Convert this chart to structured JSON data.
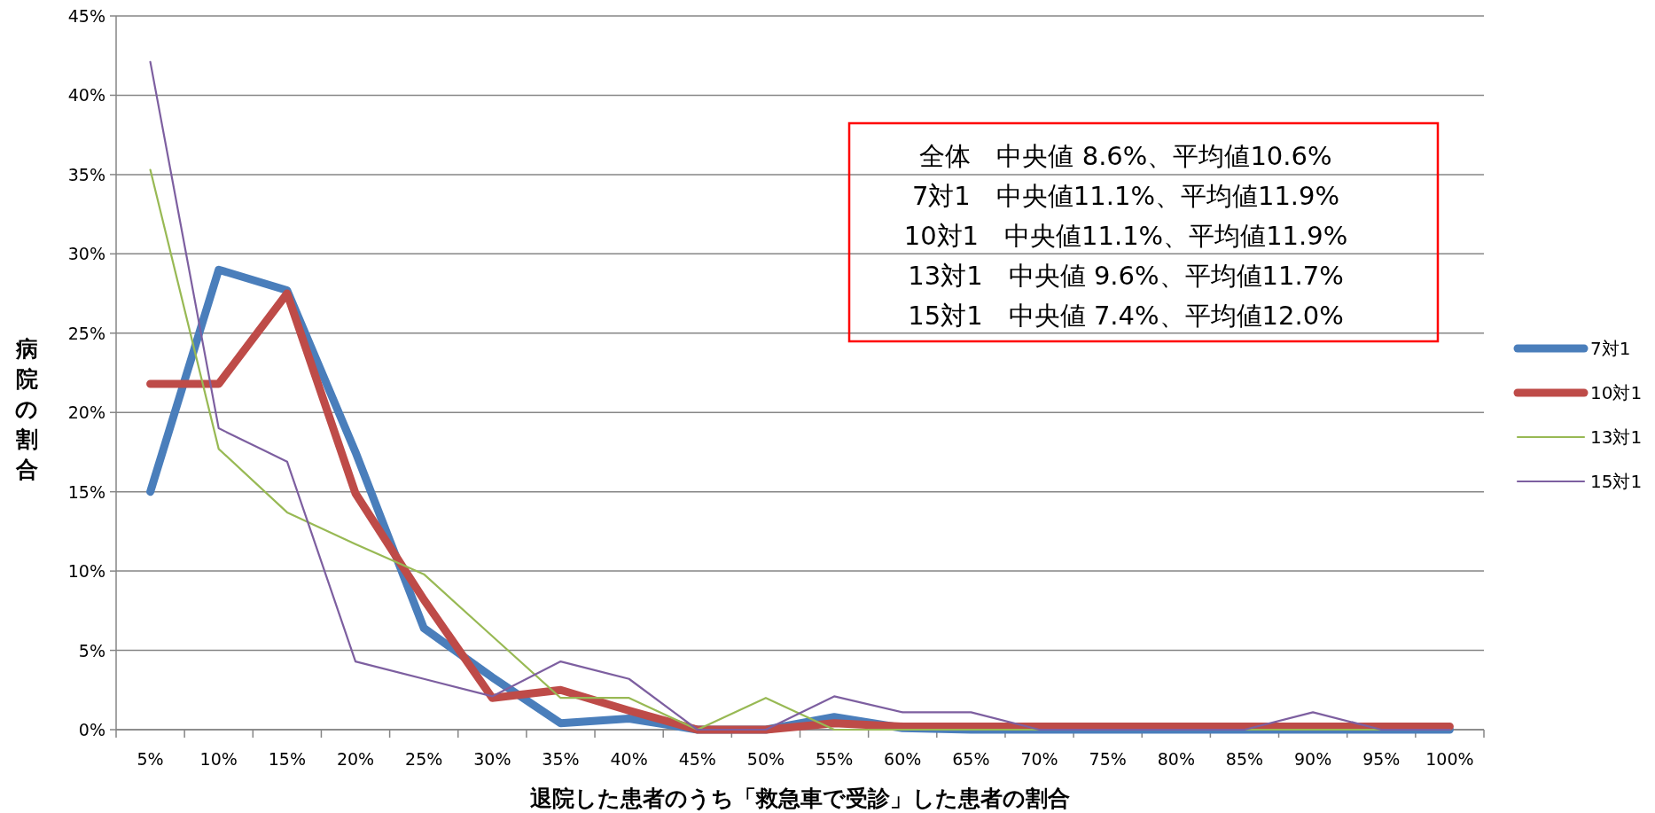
{
  "chart_data": {
    "type": "line",
    "xlabel": "退院した患者のうち「救急車で受診」した患者の割合",
    "ylabel": "病院の割合",
    "categories": [
      "5%",
      "10%",
      "15%",
      "20%",
      "25%",
      "30%",
      "35%",
      "40%",
      "45%",
      "50%",
      "55%",
      "60%",
      "65%",
      "70%",
      "75%",
      "80%",
      "85%",
      "90%",
      "95%",
      "100%"
    ],
    "series": [
      {
        "name": "7対1",
        "color": "#4a7ebb",
        "values": [
          15.0,
          29.0,
          27.7,
          17.5,
          6.4,
          3.3,
          0.4,
          0.7,
          0,
          0,
          0.8,
          0.1,
          0,
          0,
          0,
          0,
          0,
          0,
          0,
          0
        ]
      },
      {
        "name": "10対1",
        "color": "#be4b48",
        "values": [
          21.8,
          21.8,
          27.5,
          14.9,
          8.2,
          2.0,
          2.5,
          1.2,
          0,
          0,
          0.4,
          0.2,
          0.2,
          0.2,
          0.2,
          0.2,
          0.2,
          0.2,
          0.2,
          0.2
        ]
      },
      {
        "name": "13対1",
        "color": "#98b954",
        "values": [
          35.3,
          17.7,
          13.7,
          11.7,
          9.8,
          5.9,
          2.0,
          2.0,
          0,
          2.0,
          0,
          0,
          0,
          0,
          0,
          0,
          0,
          0,
          0,
          0
        ]
      },
      {
        "name": "15対1",
        "color": "#7d5fa0",
        "values": [
          42.1,
          19.0,
          16.9,
          4.3,
          3.2,
          2.1,
          4.3,
          3.2,
          0,
          0,
          2.1,
          1.1,
          1.1,
          0,
          0,
          0,
          0,
          1.1,
          0,
          0
        ]
      }
    ],
    "ylim": [
      0,
      45
    ],
    "yticks": [
      {
        "value": 0,
        "label": "0%"
      },
      {
        "value": 5,
        "label": "5%"
      },
      {
        "value": 10,
        "label": "10%"
      },
      {
        "value": 15,
        "label": "15%"
      },
      {
        "value": 20,
        "label": "20%"
      },
      {
        "value": 25,
        "label": "25%"
      },
      {
        "value": 30,
        "label": "30%"
      },
      {
        "value": 35,
        "label": "35%"
      },
      {
        "value": 40,
        "label": "40%"
      },
      {
        "value": 45,
        "label": "45%"
      }
    ],
    "grid": "y",
    "legend": "right",
    "marker": "none",
    "annotations": [
      "全体　中央値 8.6%、平均値10.6%",
      "7対1　中央値11.1%、平均値11.9%",
      "10対1　中央値11.1%、平均値11.9%",
      "13対1　中央値 9.6%、平均値11.7%",
      "15対1　中央値 7.4%、平均値12.0%"
    ]
  }
}
